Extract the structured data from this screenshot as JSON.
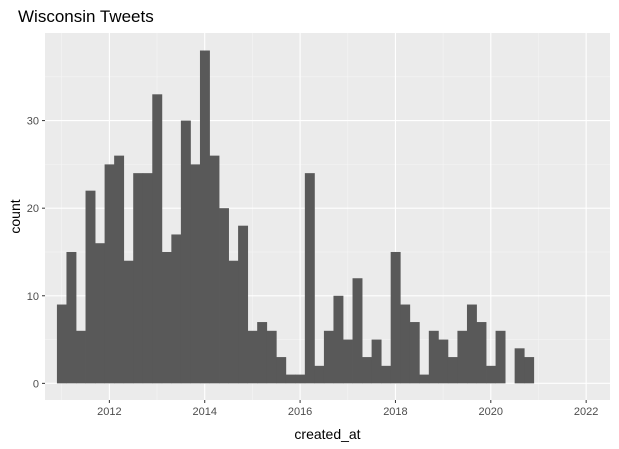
{
  "chart_data": {
    "type": "bar",
    "title": "Wisconsin Tweets",
    "xlabel": "created_at",
    "ylabel": "count",
    "x_ticks": [
      2012,
      2014,
      2016,
      2018,
      2020,
      2022
    ],
    "y_ticks": [
      0,
      10,
      20,
      30
    ],
    "xlim": [
      2010.65,
      2022.5
    ],
    "ylim": [
      -1.9,
      40
    ],
    "bin_start": 2010.9,
    "bin_width": 0.2,
    "values": [
      9,
      15,
      6,
      22,
      16,
      25,
      26,
      14,
      24,
      24,
      33,
      15,
      17,
      30,
      25,
      38,
      26,
      20,
      14,
      18,
      6,
      7,
      6,
      3,
      1,
      1,
      24,
      2,
      6,
      10,
      5,
      12,
      3,
      5,
      2,
      15,
      9,
      7,
      1,
      6,
      5,
      3,
      6,
      9,
      7,
      2,
      6,
      0,
      4,
      3
    ],
    "bar_color": "#595959",
    "panel_background": "#ebebeb",
    "grid": true,
    "legend": "none"
  }
}
